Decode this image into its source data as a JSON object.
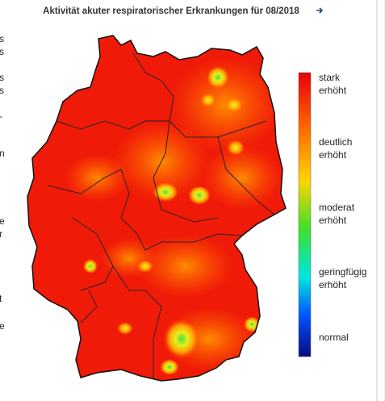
{
  "header": {
    "title": "Aktivität akuter respiratorischer Erkrankungen für 08/2018"
  },
  "legend": {
    "labels": [
      [
        "stark",
        "erhöht"
      ],
      [
        "deutlich",
        "erhöht"
      ],
      [
        "moderat",
        "erhöht"
      ],
      [
        "geringfügig",
        "erhöht"
      ],
      [
        "normal"
      ]
    ]
  },
  "side_fragments": [
    "s",
    "s",
    "s",
    "s",
    "-",
    "n",
    "e",
    "r",
    "t",
    "e"
  ]
}
